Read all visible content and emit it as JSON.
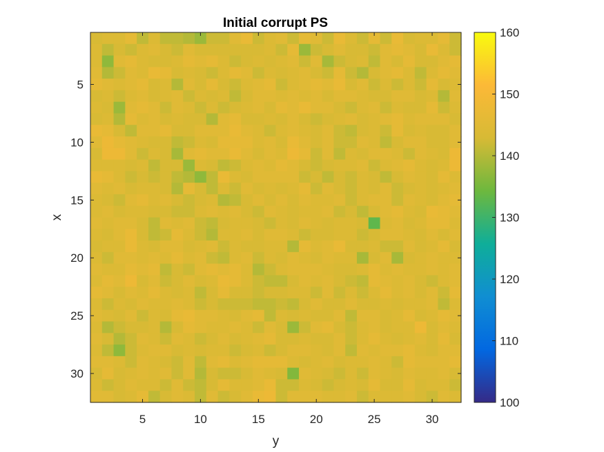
{
  "chart_data": {
    "type": "heatmap",
    "title": "Initial corrupt PS",
    "xlabel": "y",
    "ylabel": "x",
    "x_range": [
      1,
      32
    ],
    "y_range": [
      1,
      32
    ],
    "y_direction": "reversed",
    "xticks": [
      5,
      10,
      15,
      20,
      25,
      30
    ],
    "yticks": [
      5,
      10,
      15,
      20,
      25,
      30
    ],
    "colormap": "parula",
    "colorbar": {
      "limits": [
        100,
        160
      ],
      "ticks": [
        100,
        110,
        120,
        130,
        140,
        150,
        160
      ],
      "colors": [
        "#352a87",
        "#0268e1",
        "#108ed2",
        "#0fae99",
        "#6db83e",
        "#d7ba35",
        "#fcb937",
        "#f9fb0e"
      ]
    },
    "value_range_estimated": [
      132,
      152
    ],
    "values": [
      [
        143,
        144,
        144,
        146,
        141,
        144,
        141,
        141,
        140,
        138,
        142,
        142,
        145,
        147,
        142,
        144,
        145,
        142,
        146,
        145,
        142,
        147,
        144,
        142,
        146,
        142,
        147,
        143,
        144,
        144,
        146,
        142
      ],
      [
        144,
        141,
        143,
        142,
        144,
        145,
        143,
        142,
        145,
        143,
        143,
        143,
        143,
        143,
        143,
        144,
        142,
        146,
        138,
        142,
        143,
        145,
        143,
        143,
        142,
        145,
        146,
        145,
        143,
        147,
        144,
        142
      ],
      [
        144,
        137,
        145,
        146,
        144,
        143,
        143,
        144,
        146,
        145,
        146,
        144,
        142,
        143,
        144,
        143,
        144,
        145,
        142,
        145,
        139,
        142,
        143,
        144,
        141,
        145,
        143,
        146,
        143,
        143,
        145,
        146
      ],
      [
        145,
        140,
        142,
        145,
        144,
        147,
        146,
        143,
        144,
        143,
        142,
        144,
        146,
        145,
        142,
        144,
        143,
        144,
        145,
        143,
        142,
        146,
        142,
        140,
        143,
        145,
        146,
        144,
        141,
        144,
        146,
        145
      ],
      [
        146,
        145,
        144,
        145,
        146,
        143,
        144,
        140,
        145,
        143,
        146,
        143,
        142,
        144,
        145,
        146,
        142,
        144,
        145,
        146,
        145,
        147,
        143,
        145,
        142,
        144,
        142,
        144,
        142,
        146,
        143,
        144
      ],
      [
        143,
        144,
        142,
        144,
        145,
        143,
        144,
        145,
        142,
        144,
        143,
        144,
        141,
        143,
        145,
        145,
        144,
        145,
        144,
        145,
        143,
        145,
        145,
        144,
        143,
        143,
        145,
        145,
        143,
        144,
        140,
        145
      ],
      [
        144,
        143,
        138,
        145,
        146,
        145,
        142,
        145,
        144,
        142,
        144,
        142,
        143,
        144,
        145,
        143,
        146,
        145,
        147,
        145,
        145,
        143,
        142,
        144,
        145,
        142,
        144,
        143,
        143,
        146,
        142,
        144
      ],
      [
        143,
        144,
        140,
        146,
        144,
        145,
        143,
        144,
        143,
        143,
        140,
        145,
        146,
        143,
        143,
        144,
        143,
        145,
        143,
        142,
        143,
        144,
        145,
        143,
        144,
        145,
        146,
        144,
        145,
        145,
        145,
        143
      ],
      [
        147,
        146,
        143,
        141,
        145,
        145,
        146,
        143,
        143,
        145,
        145,
        145,
        147,
        145,
        144,
        142,
        144,
        145,
        144,
        143,
        145,
        142,
        141,
        143,
        144,
        142,
        146,
        143,
        144,
        143,
        143,
        145
      ],
      [
        145,
        148,
        146,
        145,
        144,
        143,
        143,
        141,
        142,
        144,
        143,
        146,
        146,
        146,
        144,
        145,
        143,
        147,
        145,
        143,
        145,
        142,
        142,
        145,
        144,
        141,
        143,
        145,
        145,
        143,
        143,
        145
      ],
      [
        143,
        148,
        148,
        145,
        142,
        144,
        143,
        139,
        145,
        146,
        145,
        145,
        147,
        145,
        143,
        145,
        144,
        148,
        146,
        142,
        145,
        141,
        144,
        143,
        145,
        145,
        144,
        142,
        145,
        144,
        143,
        148
      ],
      [
        144,
        144,
        144,
        143,
        144,
        141,
        143,
        143,
        138,
        144,
        143,
        141,
        142,
        144,
        145,
        144,
        146,
        145,
        143,
        142,
        143,
        144,
        144,
        145,
        142,
        144,
        145,
        146,
        144,
        143,
        144,
        148
      ],
      [
        147,
        146,
        144,
        142,
        143,
        142,
        143,
        141,
        140,
        137,
        141,
        147,
        144,
        143,
        145,
        145,
        145,
        145,
        142,
        143,
        141,
        143,
        142,
        144,
        143,
        141,
        143,
        145,
        144,
        143,
        146,
        144
      ],
      [
        145,
        144,
        145,
        143,
        144,
        144,
        143,
        140,
        146,
        143,
        141,
        144,
        142,
        145,
        143,
        144,
        143,
        144,
        146,
        142,
        145,
        143,
        142,
        144,
        143,
        145,
        142,
        143,
        144,
        143,
        144,
        145
      ],
      [
        144,
        143,
        142,
        145,
        146,
        144,
        145,
        143,
        142,
        143,
        144,
        140,
        141,
        143,
        145,
        143,
        145,
        143,
        145,
        144,
        144,
        145,
        142,
        144,
        145,
        145,
        142,
        145,
        144,
        143,
        145,
        146
      ],
      [
        144,
        145,
        143,
        144,
        144,
        143,
        143,
        142,
        142,
        144,
        145,
        144,
        145,
        143,
        142,
        145,
        144,
        143,
        144,
        144,
        145,
        142,
        143,
        141,
        143,
        145,
        146,
        144,
        143,
        147,
        146,
        145
      ],
      [
        145,
        144,
        145,
        145,
        143,
        141,
        145,
        144,
        145,
        142,
        141,
        143,
        144,
        144,
        143,
        142,
        144,
        143,
        145,
        144,
        143,
        144,
        144,
        143,
        133,
        144,
        145,
        143,
        144,
        146,
        146,
        144
      ],
      [
        144,
        143,
        145,
        147,
        143,
        141,
        142,
        146,
        144,
        142,
        140,
        144,
        144,
        145,
        143,
        145,
        145,
        144,
        142,
        143,
        143,
        144,
        144,
        142,
        143,
        145,
        145,
        144,
        143,
        145,
        143,
        145
      ],
      [
        143,
        144,
        144,
        147,
        144,
        143,
        145,
        145,
        143,
        144,
        145,
        142,
        144,
        143,
        143,
        144,
        144,
        140,
        146,
        144,
        145,
        147,
        143,
        143,
        144,
        142,
        142,
        145,
        143,
        144,
        146,
        143
      ],
      [
        144,
        142,
        145,
        145,
        144,
        145,
        144,
        146,
        144,
        145,
        142,
        141,
        144,
        145,
        142,
        144,
        143,
        145,
        144,
        143,
        145,
        144,
        144,
        139,
        143,
        145,
        139,
        143,
        144,
        145,
        144,
        144
      ],
      [
        145,
        144,
        144,
        146,
        145,
        146,
        141,
        143,
        142,
        145,
        146,
        145,
        146,
        144,
        140,
        142,
        144,
        145,
        145,
        145,
        144,
        143,
        143,
        144,
        146,
        144,
        145,
        144,
        144,
        145,
        144,
        145
      ],
      [
        144,
        146,
        145,
        148,
        143,
        145,
        142,
        143,
        145,
        143,
        144,
        147,
        146,
        144,
        142,
        141,
        141,
        143,
        145,
        144,
        145,
        143,
        142,
        141,
        146,
        145,
        144,
        145,
        143,
        142,
        144,
        145
      ],
      [
        146,
        145,
        143,
        145,
        144,
        146,
        144,
        143,
        144,
        141,
        143,
        146,
        143,
        143,
        142,
        143,
        143,
        144,
        144,
        142,
        145,
        142,
        144,
        142,
        144,
        146,
        144,
        145,
        143,
        145,
        142,
        146
      ],
      [
        144,
        142,
        144,
        143,
        145,
        144,
        144,
        145,
        144,
        142,
        143,
        142,
        142,
        142,
        141,
        141,
        142,
        141,
        143,
        145,
        143,
        143,
        145,
        143,
        143,
        144,
        143,
        144,
        144,
        145,
        141,
        144
      ],
      [
        145,
        144,
        143,
        145,
        142,
        144,
        143,
        146,
        147,
        145,
        145,
        144,
        143,
        145,
        146,
        141,
        144,
        143,
        144,
        143,
        143,
        145,
        141,
        145,
        145,
        143,
        144,
        146,
        143,
        144,
        146,
        145
      ],
      [
        144,
        140,
        142,
        143,
        143,
        144,
        140,
        143,
        146,
        145,
        144,
        144,
        145,
        144,
        142,
        145,
        143,
        138,
        142,
        145,
        146,
        143,
        142,
        144,
        145,
        143,
        144,
        144,
        148,
        143,
        145,
        144
      ],
      [
        145,
        143,
        140,
        142,
        145,
        144,
        142,
        145,
        144,
        142,
        143,
        145,
        143,
        144,
        145,
        146,
        143,
        143,
        144,
        143,
        143,
        145,
        142,
        144,
        146,
        144,
        143,
        144,
        145,
        143,
        146,
        143
      ],
      [
        144,
        141,
        137,
        142,
        144,
        145,
        145,
        143,
        144,
        143,
        144,
        144,
        142,
        143,
        144,
        142,
        143,
        145,
        145,
        144,
        143,
        145,
        141,
        145,
        144,
        145,
        145,
        146,
        144,
        143,
        145,
        145
      ],
      [
        145,
        145,
        144,
        142,
        145,
        144,
        143,
        142,
        145,
        141,
        145,
        146,
        144,
        145,
        146,
        146,
        146,
        144,
        143,
        144,
        145,
        143,
        144,
        144,
        145,
        144,
        142,
        146,
        145,
        145,
        145,
        146
      ],
      [
        143,
        146,
        143,
        144,
        145,
        144,
        145,
        142,
        145,
        140,
        143,
        142,
        142,
        143,
        145,
        144,
        143,
        136,
        145,
        144,
        143,
        142,
        144,
        142,
        145,
        144,
        143,
        145,
        144,
        144,
        145,
        143
      ],
      [
        144,
        142,
        143,
        145,
        144,
        144,
        142,
        145,
        142,
        141,
        143,
        146,
        144,
        144,
        145,
        147,
        142,
        142,
        144,
        143,
        142,
        143,
        144,
        143,
        146,
        143,
        143,
        146,
        143,
        144,
        144,
        142
      ],
      [
        145,
        145,
        143,
        144,
        146,
        141,
        143,
        145,
        144,
        141,
        145,
        142,
        143,
        145,
        147,
        148,
        142,
        145,
        145,
        145,
        144,
        144,
        145,
        142,
        144,
        144,
        144,
        145,
        143,
        142,
        145,
        144
      ]
    ]
  }
}
